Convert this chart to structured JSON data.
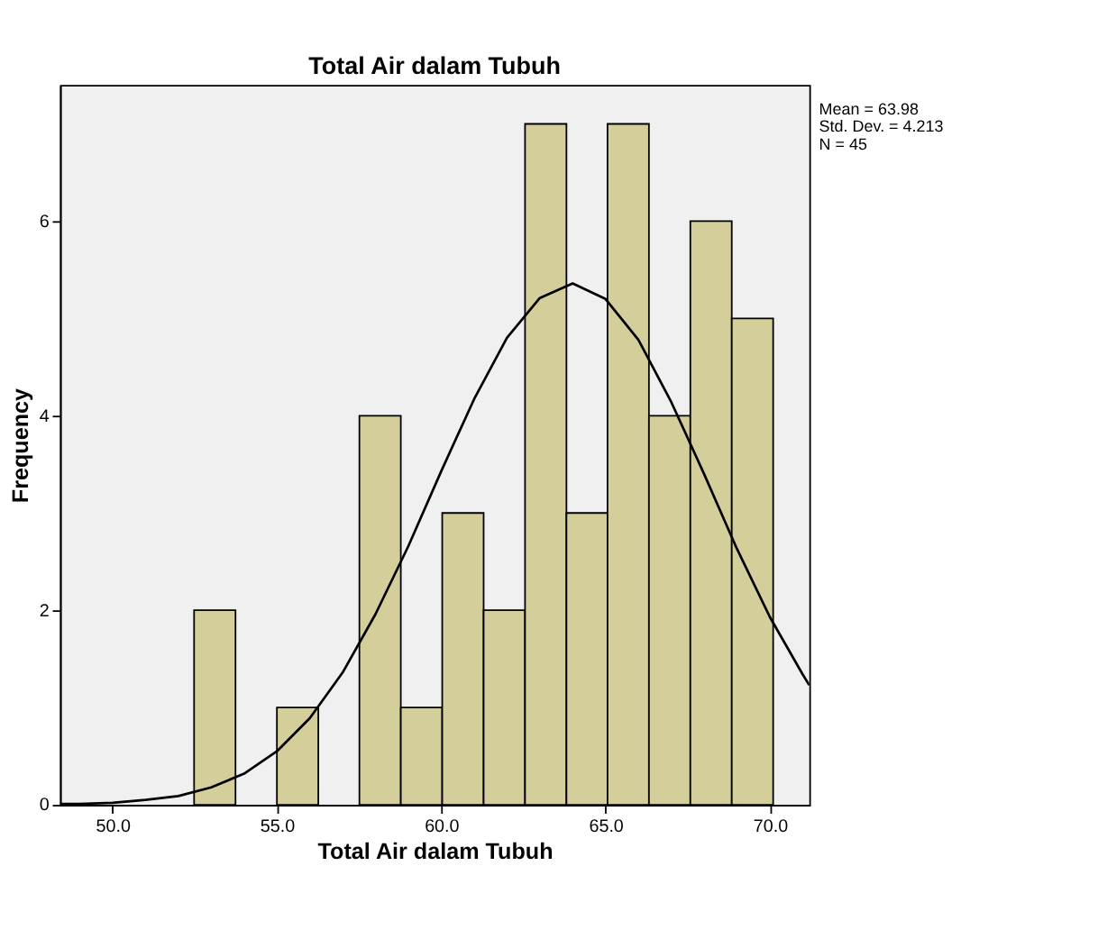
{
  "chart_data": {
    "type": "histogram",
    "title": "Total Air dalam Tubuh",
    "xlabel": "Total Air dalam Tubuh",
    "ylabel": "Frequency",
    "bins": [
      52.48,
      53.74,
      55.0,
      56.26,
      57.51,
      58.77,
      60.03,
      61.29,
      62.55,
      63.81,
      65.06,
      66.32,
      67.58,
      68.84,
      70.1
    ],
    "values": [
      2,
      0,
      1,
      0,
      4,
      1,
      3,
      2,
      7,
      3,
      7,
      4,
      6,
      5
    ],
    "color": "#d3ce9a",
    "series": [
      {
        "type": "line",
        "color": "#000000",
        "x": [
          48.4,
          49,
          50,
          51,
          52,
          53,
          54,
          55,
          56,
          57,
          58,
          59,
          60,
          61,
          62,
          63,
          64,
          65,
          66,
          67,
          68,
          69,
          70,
          71,
          71.2
        ],
        "values": [
          0.01,
          0.01,
          0.02,
          0.05,
          0.09,
          0.18,
          0.32,
          0.55,
          0.89,
          1.36,
          1.96,
          2.66,
          3.43,
          4.17,
          4.8,
          5.21,
          5.36,
          5.2,
          4.78,
          4.14,
          3.4,
          2.63,
          1.93,
          1.34,
          1.23
        ]
      }
    ],
    "xlim": [
      48.4,
      71.2
    ],
    "ylim": [
      0,
      7.4
    ],
    "xticks": [
      {
        "value": 50,
        "label": "50.0"
      },
      {
        "value": 55,
        "label": "55.0"
      },
      {
        "value": 60,
        "label": "60.0"
      },
      {
        "value": 65,
        "label": "65.0"
      },
      {
        "value": 70,
        "label": "70.0"
      }
    ],
    "yticks": [
      0,
      2,
      4,
      6
    ],
    "grid": false,
    "annotations": [
      "Mean = 63.98",
      "Std. Dev. = 4.213",
      "N = 45"
    ]
  }
}
